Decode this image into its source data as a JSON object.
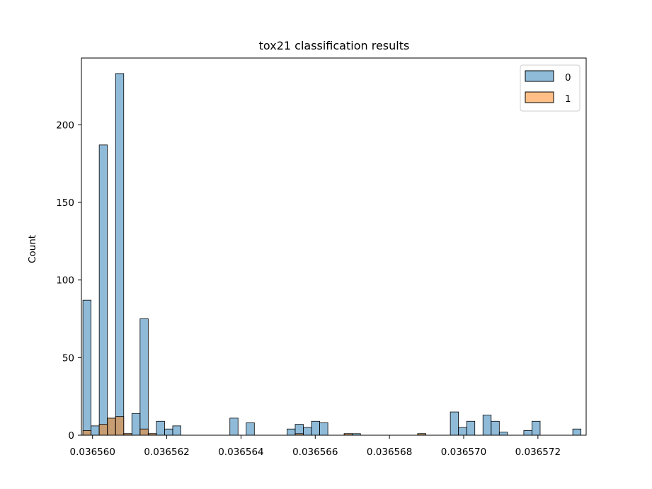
{
  "chart_data": {
    "type": "histogram",
    "title": "tox21 classification results",
    "xlabel": "",
    "ylabel": "Count",
    "xlim": [
      0.0365597,
      0.0365733
    ],
    "ylim": [
      0,
      243
    ],
    "bin_width": 2.2e-07,
    "xticks": [
      0.03656,
      0.036562,
      0.036564,
      0.036566,
      0.036568,
      0.03657,
      0.036572
    ],
    "xtick_labels": [
      "0.036560",
      "0.036562",
      "0.036564",
      "0.036566",
      "0.036568",
      "0.036570",
      "0.036572"
    ],
    "yticks": [
      0,
      50,
      100,
      150,
      200
    ],
    "ytick_labels": [
      "0",
      "50",
      "100",
      "150",
      "200"
    ],
    "legend": {
      "title": "",
      "placement": "top-right",
      "entries": [
        "0",
        "1"
      ]
    },
    "series": [
      {
        "name": "0",
        "color": "#1f77b4",
        "bins": [
          {
            "x": 0.03655985,
            "count": 87
          },
          {
            "x": 0.03656007,
            "count": 6
          },
          {
            "x": 0.03656029,
            "count": 187
          },
          {
            "x": 0.03656051,
            "count": 11
          },
          {
            "x": 0.03656073,
            "count": 233
          },
          {
            "x": 0.03656095,
            "count": 1
          },
          {
            "x": 0.03656117,
            "count": 14
          },
          {
            "x": 0.03656139,
            "count": 75
          },
          {
            "x": 0.03656161,
            "count": 1
          },
          {
            "x": 0.03656183,
            "count": 9
          },
          {
            "x": 0.03656205,
            "count": 4
          },
          {
            "x": 0.03656227,
            "count": 6
          },
          {
            "x": 0.03656381,
            "count": 11
          },
          {
            "x": 0.03656425,
            "count": 8
          },
          {
            "x": 0.03656535,
            "count": 4
          },
          {
            "x": 0.03656557,
            "count": 7
          },
          {
            "x": 0.03656579,
            "count": 5
          },
          {
            "x": 0.03656601,
            "count": 9
          },
          {
            "x": 0.03656623,
            "count": 8
          },
          {
            "x": 0.03656689,
            "count": 1
          },
          {
            "x": 0.03656711,
            "count": 1
          },
          {
            "x": 0.03656887,
            "count": 1
          },
          {
            "x": 0.03656975,
            "count": 15
          },
          {
            "x": 0.03656997,
            "count": 5
          },
          {
            "x": 0.03657019,
            "count": 9
          },
          {
            "x": 0.03657063,
            "count": 13
          },
          {
            "x": 0.03657085,
            "count": 9
          },
          {
            "x": 0.03657107,
            "count": 2
          },
          {
            "x": 0.03657173,
            "count": 3
          },
          {
            "x": 0.03657195,
            "count": 9
          },
          {
            "x": 0.03657305,
            "count": 4
          }
        ]
      },
      {
        "name": "1",
        "color": "#ff7f0e",
        "bins": [
          {
            "x": 0.03655985,
            "count": 3
          },
          {
            "x": 0.03656029,
            "count": 7
          },
          {
            "x": 0.03656051,
            "count": 11
          },
          {
            "x": 0.03656073,
            "count": 12
          },
          {
            "x": 0.03656095,
            "count": 1
          },
          {
            "x": 0.03656139,
            "count": 4
          },
          {
            "x": 0.03656161,
            "count": 1
          },
          {
            "x": 0.03656557,
            "count": 1
          },
          {
            "x": 0.03656689,
            "count": 1
          },
          {
            "x": 0.03656887,
            "count": 1
          }
        ]
      }
    ]
  }
}
